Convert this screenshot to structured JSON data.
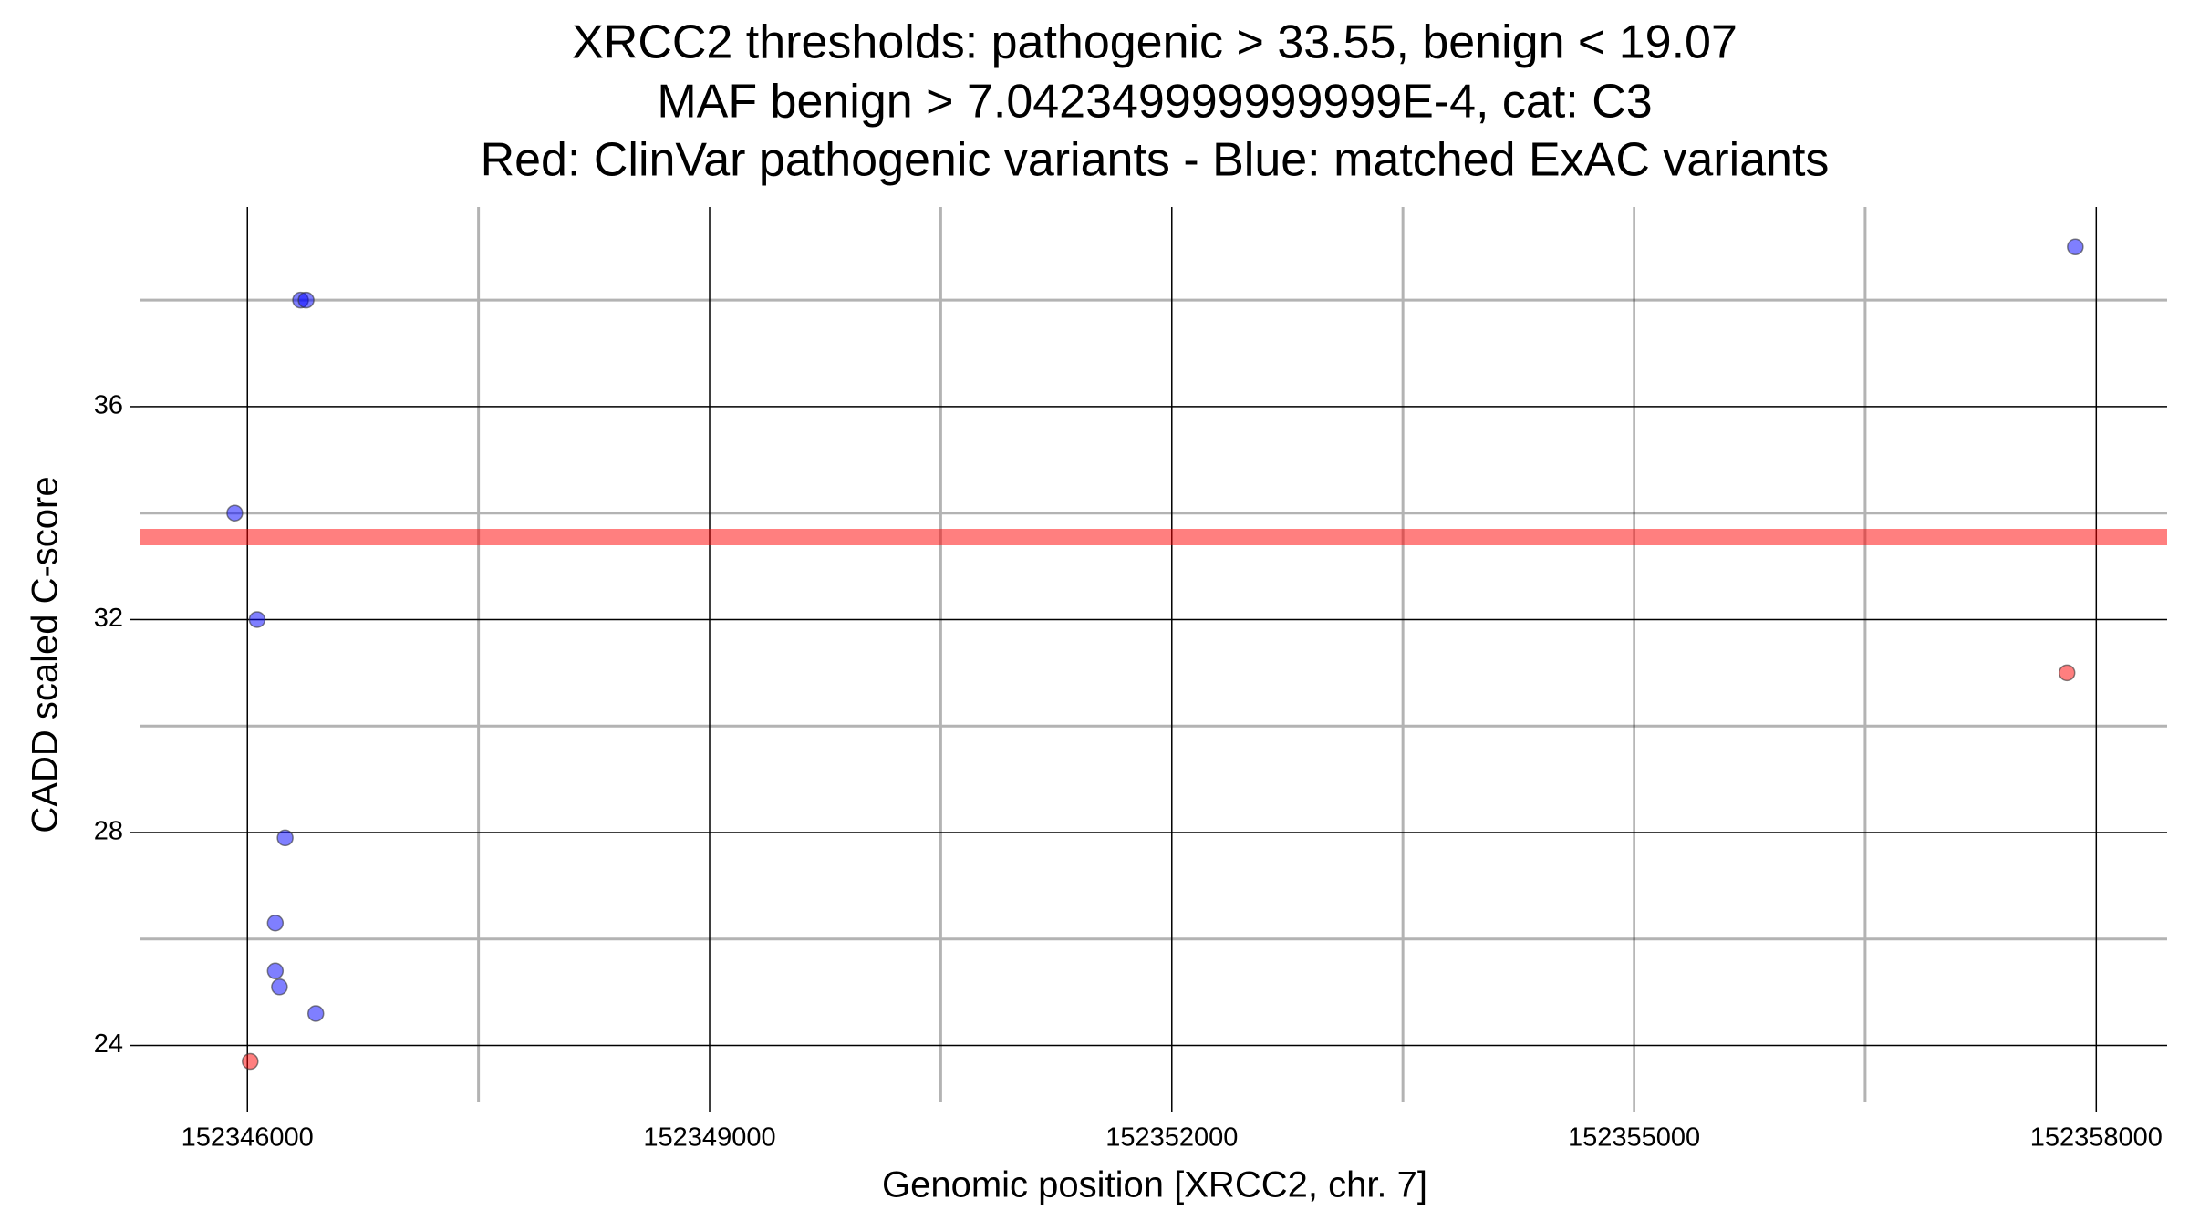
{
  "chart_data": {
    "type": "scatter",
    "title": [
      "XRCC2 thresholds: pathogenic > 33.55, benign < 19.07",
      "MAF benign > 7.042349999999999E-4, cat: C3",
      "Red: ClinVar pathogenic variants - Blue: matched ExAC variants"
    ],
    "x_label": "Genomic position [XRCC2, chr. 7]",
    "y_label": "CADD scaled C-score",
    "xlim": [
      152345300,
      152358460
    ],
    "ylim": [
      22.93,
      39.75
    ],
    "xticks": [
      152346000,
      152349000,
      152352000,
      152355000,
      152358000
    ],
    "yticks": [
      24,
      28,
      32,
      36
    ],
    "x_minor_grid": [
      152347500,
      152350500,
      152353500,
      152356500
    ],
    "y_minor_grid": [
      26,
      30,
      34,
      38
    ],
    "grid": true,
    "threshold": {
      "value": 33.55,
      "color": "#ff0000"
    },
    "series": [
      {
        "color": "#0000ff",
        "x": [
          152346345,
          152346381,
          152357864,
          152345918,
          152346063,
          152346245,
          152346181,
          152346181,
          152346208,
          152346444
        ],
        "values": [
          38.0,
          38.0,
          39.0,
          34.0,
          32.0,
          27.9,
          26.3,
          25.4,
          25.1,
          24.6
        ]
      },
      {
        "color": "#ff0000",
        "x": [
          152346018,
          152357810
        ],
        "values": [
          23.7,
          31.0
        ]
      }
    ]
  }
}
